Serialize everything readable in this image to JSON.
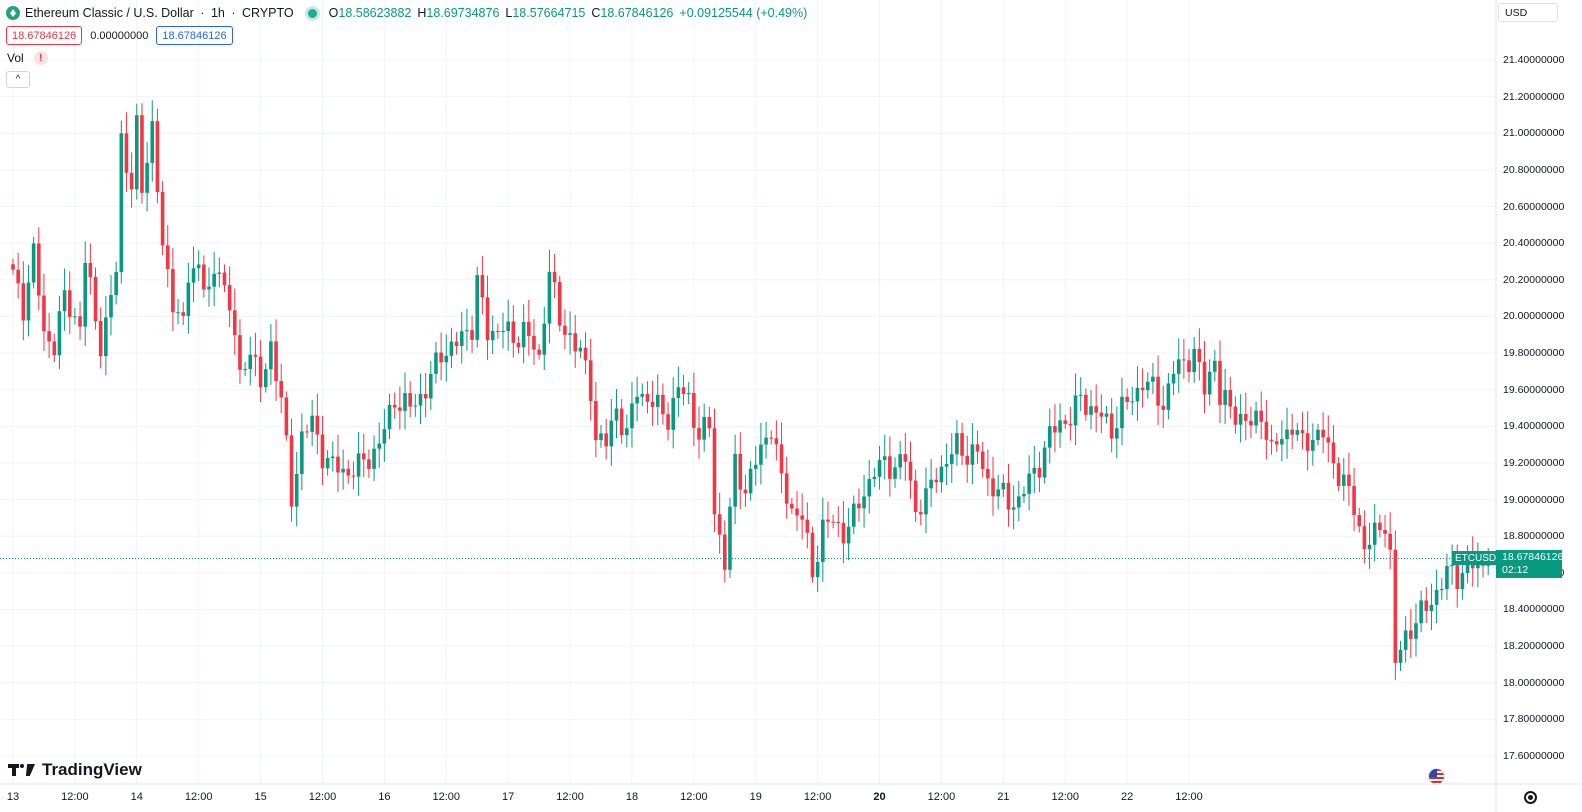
{
  "header": {
    "symbol_title": "Ethereum Classic / U.S. Dollar",
    "interval": "1h",
    "exchange": "CRYPTO",
    "sep": "·",
    "ohlc": {
      "o_label": "O",
      "o_value": "18.58623882",
      "h_label": "H",
      "h_value": "18.69734876",
      "l_label": "L",
      "l_value": "18.57664715",
      "c_label": "C",
      "c_value": "18.67846126",
      "change": "+0.09125544 (+0.49%)"
    },
    "bid": "18.67846126",
    "spread": "0.00000000",
    "ask": "18.67846126",
    "vol_label": "Vol",
    "vol_warning": "!",
    "collapse_glyph": "^"
  },
  "currency": "USD",
  "branding": "TradingView",
  "last_price": {
    "symbol": "ETCUSD",
    "value": "18.67846126",
    "countdown": "02:12"
  },
  "colors": {
    "up": "#089981",
    "down": "#f23645",
    "grid": "#f0f3fa",
    "text": "#131722"
  },
  "icons": [
    "ethereum-classic-logo-icon",
    "live-status-icon",
    "warning-icon",
    "chevron-up-icon",
    "tradingview-logo-icon",
    "us-flag-icon",
    "gear-icon"
  ],
  "chart_data": {
    "type": "candlestick",
    "y_axis": {
      "range": [
        17.5,
        21.55
      ],
      "ticks": [
        "17.60000000",
        "17.80000000",
        "18.00000000",
        "18.20000000",
        "18.40000000",
        "18.60000000",
        "18.80000000",
        "19.00000000",
        "19.20000000",
        "19.40000000",
        "19.60000000",
        "19.80000000",
        "20.00000000",
        "20.20000000",
        "20.40000000",
        "20.60000000",
        "20.80000000",
        "21.00000000",
        "21.20000000",
        "21.40000000"
      ]
    },
    "x_axis": {
      "labels": [
        "13",
        "12:00",
        "14",
        "12:00",
        "15",
        "12:00",
        "16",
        "12:00",
        "17",
        "12:00",
        "18",
        "12:00",
        "19",
        "12:00",
        "20",
        "12:00",
        "21",
        "12:00",
        "22",
        "12:00"
      ],
      "hours_per_bar": 1,
      "label_step_hours": 12,
      "bold_labels": [
        "20"
      ]
    },
    "anchors": [
      [
        0,
        20.22
      ],
      [
        2,
        20.05
      ],
      [
        4,
        20.35
      ],
      [
        6,
        19.9
      ],
      [
        8,
        19.85
      ],
      [
        10,
        20.1
      ],
      [
        13,
        19.95
      ],
      [
        14,
        20.3
      ],
      [
        17,
        19.85
      ],
      [
        18,
        19.95
      ],
      [
        20,
        20.25
      ],
      [
        21,
        20.98
      ],
      [
        23,
        20.7
      ],
      [
        24,
        21.02
      ],
      [
        25,
        20.7
      ],
      [
        27,
        21.05
      ],
      [
        29,
        20.35
      ],
      [
        31,
        20.1
      ],
      [
        33,
        19.95
      ],
      [
        34,
        20.2
      ],
      [
        36,
        20.3
      ],
      [
        38,
        20.1
      ],
      [
        40,
        20.3
      ],
      [
        43,
        19.9
      ],
      [
        44,
        19.65
      ],
      [
        46,
        19.85
      ],
      [
        48,
        19.6
      ],
      [
        50,
        19.85
      ],
      [
        52,
        19.55
      ],
      [
        54,
        19.0
      ],
      [
        56,
        19.35
      ],
      [
        58,
        19.42
      ],
      [
        60,
        19.25
      ],
      [
        62,
        19.18
      ],
      [
        65,
        19.15
      ],
      [
        68,
        19.2
      ],
      [
        71,
        19.3
      ],
      [
        74,
        19.55
      ],
      [
        77,
        19.5
      ],
      [
        80,
        19.6
      ],
      [
        83,
        19.8
      ],
      [
        86,
        19.85
      ],
      [
        89,
        19.95
      ],
      [
        90,
        20.2
      ],
      [
        92,
        19.9
      ],
      [
        95,
        19.95
      ],
      [
        97,
        19.85
      ],
      [
        99,
        19.95
      ],
      [
        102,
        19.75
      ],
      [
        104,
        20.28
      ],
      [
        106,
        19.95
      ],
      [
        108,
        19.9
      ],
      [
        110,
        19.8
      ],
      [
        112,
        19.6
      ],
      [
        113,
        19.35
      ],
      [
        115,
        19.3
      ],
      [
        117,
        19.5
      ],
      [
        119,
        19.35
      ],
      [
        121,
        19.6
      ],
      [
        123,
        19.55
      ],
      [
        125,
        19.5
      ],
      [
        127,
        19.45
      ],
      [
        129,
        19.6
      ],
      [
        131,
        19.55
      ],
      [
        133,
        19.35
      ],
      [
        135,
        19.4
      ],
      [
        136,
        18.95
      ],
      [
        138,
        18.65
      ],
      [
        140,
        19.2
      ],
      [
        142,
        19.05
      ],
      [
        144,
        19.2
      ],
      [
        146,
        19.35
      ],
      [
        147,
        19.4
      ],
      [
        149,
        19.1
      ],
      [
        151,
        18.95
      ],
      [
        153,
        18.9
      ],
      [
        155,
        18.6
      ],
      [
        157,
        18.85
      ],
      [
        159,
        18.88
      ],
      [
        161,
        18.82
      ],
      [
        163,
        18.9
      ],
      [
        165,
        19.05
      ],
      [
        167,
        19.15
      ],
      [
        169,
        19.2
      ],
      [
        171,
        19.18
      ],
      [
        173,
        19.22
      ],
      [
        175,
        18.95
      ],
      [
        177,
        19.0
      ],
      [
        179,
        19.15
      ],
      [
        181,
        19.2
      ],
      [
        183,
        19.3
      ],
      [
        185,
        19.25
      ],
      [
        187,
        19.25
      ],
      [
        189,
        19.1
      ],
      [
        191,
        19.05
      ],
      [
        193,
        18.98
      ],
      [
        195,
        19.0
      ],
      [
        197,
        19.1
      ],
      [
        199,
        19.2
      ],
      [
        201,
        19.35
      ],
      [
        203,
        19.42
      ],
      [
        205,
        19.45
      ],
      [
        207,
        19.55
      ],
      [
        209,
        19.5
      ],
      [
        211,
        19.45
      ],
      [
        213,
        19.38
      ],
      [
        215,
        19.5
      ],
      [
        217,
        19.55
      ],
      [
        219,
        19.65
      ],
      [
        221,
        19.6
      ],
      [
        223,
        19.52
      ],
      [
        225,
        19.7
      ],
      [
        227,
        19.75
      ],
      [
        229,
        19.8
      ],
      [
        231,
        19.6
      ],
      [
        233,
        19.78
      ],
      [
        234,
        19.55
      ],
      [
        236,
        19.5
      ],
      [
        238,
        19.45
      ],
      [
        240,
        19.4
      ],
      [
        242,
        19.48
      ],
      [
        244,
        19.25
      ],
      [
        246,
        19.35
      ],
      [
        248,
        19.4
      ],
      [
        250,
        19.3
      ],
      [
        252,
        19.35
      ],
      [
        254,
        19.35
      ],
      [
        256,
        19.2
      ],
      [
        258,
        19.1
      ],
      [
        260,
        18.95
      ],
      [
        262,
        18.75
      ],
      [
        264,
        18.8
      ],
      [
        266,
        18.88
      ],
      [
        267,
        18.7
      ],
      [
        268,
        18.1
      ],
      [
        270,
        18.25
      ],
      [
        272,
        18.35
      ],
      [
        274,
        18.4
      ],
      [
        276,
        18.5
      ],
      [
        278,
        18.6
      ],
      [
        280,
        18.58
      ],
      [
        282,
        18.65
      ],
      [
        284,
        18.62
      ],
      [
        286,
        18.68
      ]
    ],
    "last_bar_index": 286,
    "last_value": 18.67846126
  }
}
